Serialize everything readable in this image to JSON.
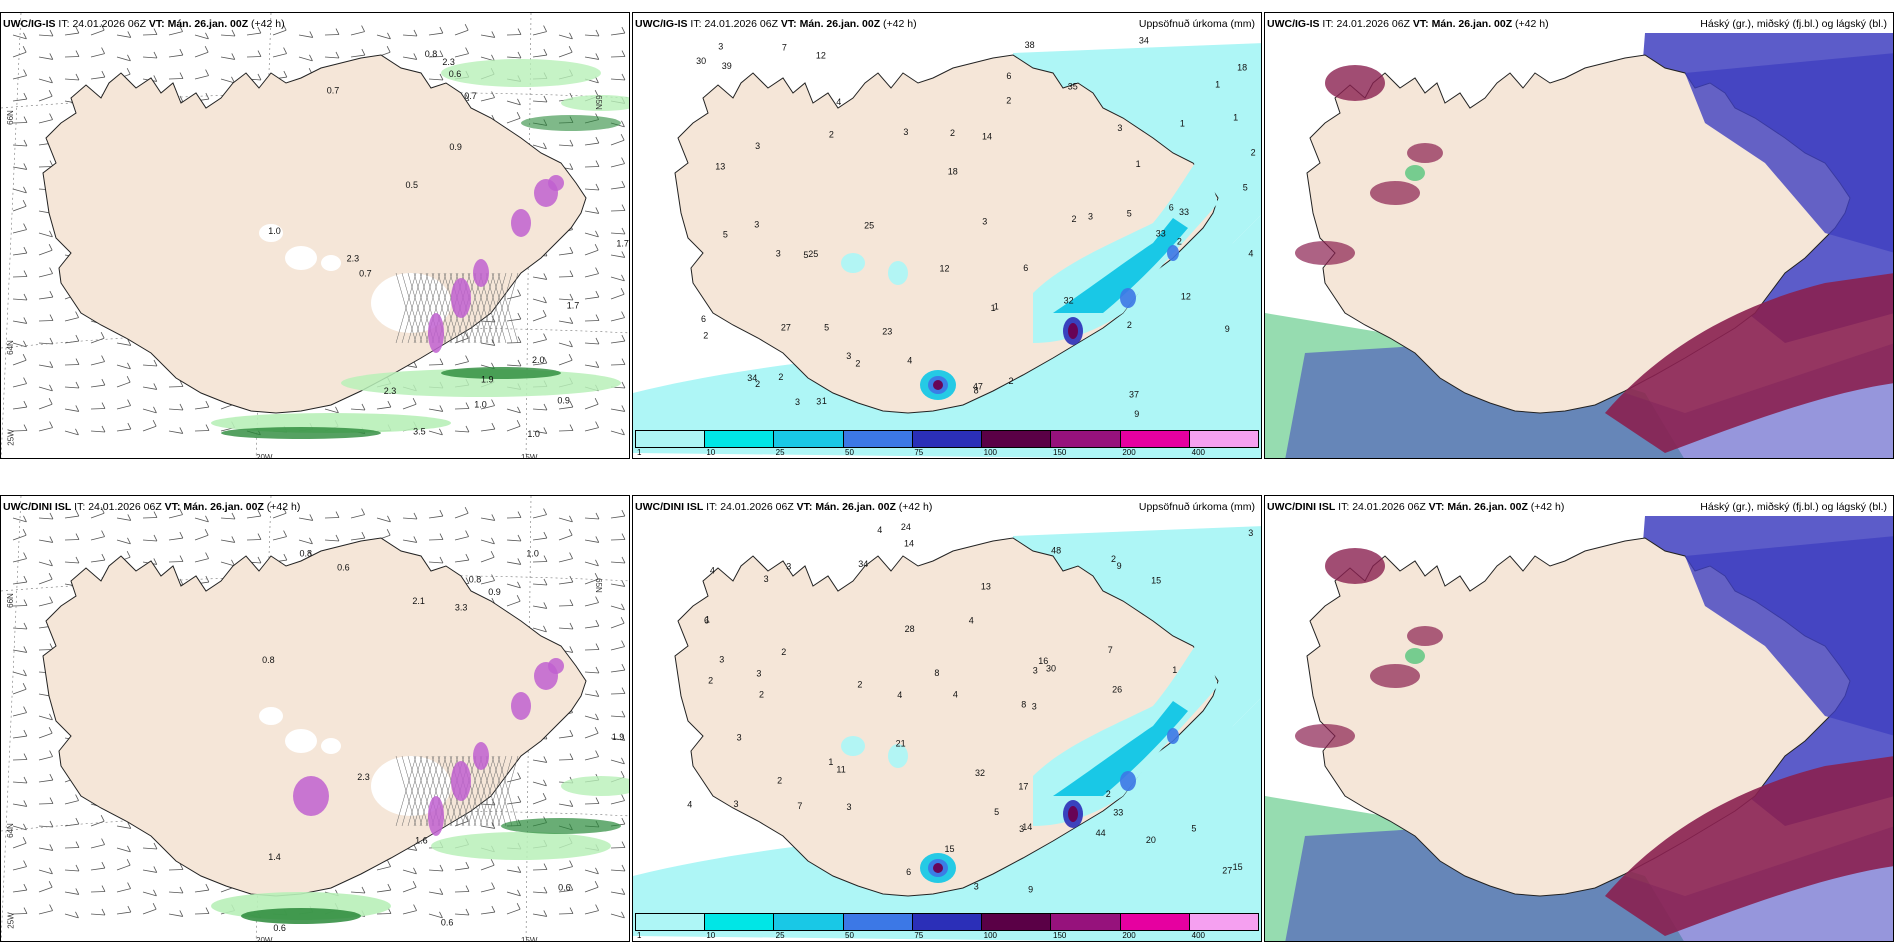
{
  "panels": [
    {
      "model": "UWC/IG-IS",
      "it_label": "IT:",
      "it_value": "24.01.2026 06Z",
      "vt_label": "VT:",
      "vt_value": "Mán. 26.jan. 00Z",
      "lead": "(+42 h)",
      "title_right": "",
      "axis_labels": [
        "66N",
        "65N",
        "64N",
        "20W",
        "15W",
        "25W"
      ],
      "numbers": [
        "0.7",
        "1.0",
        "0.7",
        "0.8",
        "0.7",
        "0.9",
        "2.0",
        "2.3",
        "0.9",
        "0.6",
        "1.0",
        "1.0",
        "1.9",
        "0.5",
        "1.7",
        "2.3",
        "3.5",
        "2.3",
        "1.7"
      ]
    },
    {
      "model": "UWC/IG-IS",
      "it_label": "IT:",
      "it_value": "24.01.2026 06Z",
      "vt_label": "VT:",
      "vt_value": "Mán. 26.jan. 00Z",
      "lead": "(+42 h)",
      "title_right": "Uppsöfnuð úrkoma (mm)",
      "numbers": [
        "2",
        "1",
        "3",
        "4",
        "3",
        "4",
        "5",
        "6",
        "4",
        "3",
        "3",
        "5",
        "2",
        "2",
        "3",
        "6",
        "2",
        "3",
        "27",
        "33",
        "47",
        "33",
        "34",
        "30",
        "35",
        "13",
        "12",
        "34",
        "37",
        "32",
        "5",
        "3",
        "12",
        "25",
        "9",
        "18",
        "14",
        "12",
        "23",
        "25",
        "18",
        "9",
        "6",
        "6",
        "5",
        "8",
        "1",
        "1",
        "2",
        "1",
        "2",
        "7",
        "2",
        "3",
        "3",
        "2",
        "1",
        "3",
        "3",
        "1",
        "2",
        "38",
        "39",
        "2",
        "2",
        "2",
        "5",
        "1"
      ]
    },
    {
      "model": "UWC/IG-IS",
      "it_label": "IT:",
      "it_value": "24.01.2026 06Z",
      "vt_label": "VT:",
      "vt_value": "Mán. 26.jan. 00Z",
      "lead": "(+42 h)",
      "title_right": "Háský (gr.), miðský (fj.bl.) og lágský (bl.)"
    },
    {
      "model": "UWC/DINI ISL",
      "it_label": "IT:",
      "it_value": "24.01.2026 06Z",
      "vt_label": "VT:",
      "vt_value": "Mán. 26.jan. 00Z",
      "lead": "(+42 h)",
      "title_right": "",
      "axis_labels": [
        "66N",
        "65N",
        "64N",
        "20W",
        "15W",
        "25W"
      ],
      "numbers": [
        "0.6",
        "0.6",
        "3.3",
        "0.6",
        "0.8",
        "2.3",
        "1.9",
        "1.6",
        "0.8",
        "0.6",
        "0.8",
        "1.0",
        "0.9",
        "1.4",
        "2.1"
      ]
    },
    {
      "model": "UWC/DINI ISL",
      "it_label": "IT:",
      "it_value": "24.01.2026 06Z",
      "vt_label": "VT:",
      "vt_value": "Mán. 26.jan. 00Z",
      "lead": "(+42 h)",
      "title_right": "Uppsöfnuð úrkoma (mm)",
      "numbers": [
        "3",
        "3",
        "1",
        "3",
        "4",
        "2",
        "3",
        "4",
        "4",
        "3",
        "2",
        "14",
        "16",
        "11",
        "32",
        "27",
        "33",
        "30",
        "15",
        "44",
        "48",
        "9",
        "13",
        "14",
        "21",
        "20",
        "6",
        "5",
        "5",
        "4",
        "15",
        "24",
        "26",
        "17",
        "15",
        "8",
        "7",
        "7",
        "6",
        "28",
        "34",
        "4",
        "2",
        "3",
        "1",
        "2",
        "2",
        "4",
        "3",
        "3",
        "2",
        "9",
        "8",
        "3",
        "3",
        "3",
        "2",
        "3",
        "1"
      ]
    },
    {
      "model": "UWC/DINI ISL",
      "it_label": "IT:",
      "it_value": "24.01.2026 06Z",
      "vt_label": "VT:",
      "vt_value": "Mán. 26.jan. 00Z",
      "lead": "(+42 h)",
      "title_right": "Háský (gr.), miðský (fj.bl.) og lágský (bl.)"
    }
  ],
  "precip_legend": {
    "labels": [
      "1",
      "10",
      "25",
      "50",
      "75",
      "100",
      "150",
      "200",
      "400"
    ],
    "colors": [
      "#aef6f6",
      "#00e6e6",
      "#19c8e6",
      "#3c78e6",
      "#2b2fb8",
      "#5a0046",
      "#96127c",
      "#e600a0",
      "#f5a0f0"
    ]
  },
  "colors": {
    "land": "#f5e6d8",
    "precip_light": "#aef6f6",
    "precip_mid": "#19c8e6",
    "precip_heavy": "#6a0050",
    "cloud_low": "#4040c0",
    "cloud_mid": "#8a2050",
    "cloud_high": "#40c070",
    "ice_fog": "#c060d0",
    "wind_green": "#2a8a3a"
  }
}
